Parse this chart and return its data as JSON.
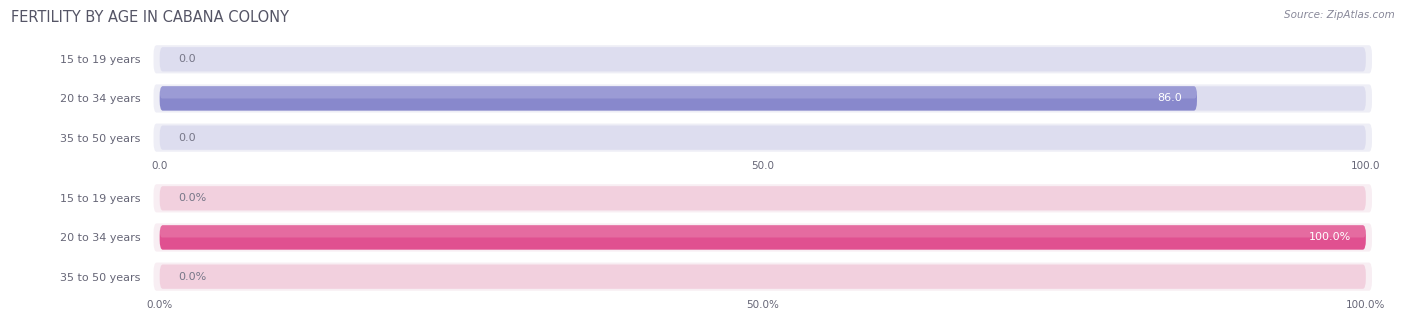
{
  "title": "FERTILITY BY AGE IN CABANA COLONY",
  "source": "Source: ZipAtlas.com",
  "top_section": {
    "categories": [
      "15 to 19 years",
      "20 to 34 years",
      "35 to 50 years"
    ],
    "values": [
      0.0,
      86.0,
      0.0
    ],
    "max_val": 100.0,
    "xticks": [
      0.0,
      50.0,
      100.0
    ],
    "xtick_labels": [
      "0.0",
      "50.0",
      "100.0"
    ],
    "bar_color": "#8888cc",
    "bar_color_light": "#c0c0e8",
    "bar_bg_color": "#ddddef",
    "row_bg_color": "#eeeef6"
  },
  "bottom_section": {
    "categories": [
      "15 to 19 years",
      "20 to 34 years",
      "35 to 50 years"
    ],
    "values": [
      0.0,
      100.0,
      0.0
    ],
    "max_val": 100.0,
    "xticks": [
      0.0,
      50.0,
      100.0
    ],
    "xtick_labels": [
      "0.0%",
      "50.0%",
      "100.0%"
    ],
    "bar_color": "#e05090",
    "bar_color_light": "#f0a0c0",
    "bar_bg_color": "#f2d0de",
    "row_bg_color": "#f8eef3"
  },
  "fig_bg_color": "#ffffff",
  "title_color": "#555566",
  "label_color": "#666677",
  "source_color": "#888899",
  "value_color_inside": "#ffffff",
  "value_color_outside": "#777788",
  "title_fontsize": 10.5,
  "label_fontsize": 8.0,
  "value_fontsize": 8.0,
  "tick_fontsize": 7.5,
  "source_fontsize": 7.5
}
